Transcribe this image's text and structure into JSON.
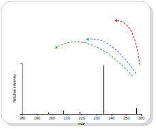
{
  "chart_data": {
    "type": "bar",
    "x": [
      198,
      208,
      219,
      235,
      257
    ],
    "values": [
      3,
      7,
      4,
      100,
      12
    ],
    "color": "#000000",
    "xlim": [
      180,
      260
    ],
    "xticks": [
      180,
      190,
      200,
      210,
      220,
      230,
      240,
      250,
      260
    ],
    "ylim": [
      0,
      105
    ],
    "yticks": [
      0
    ],
    "x_label": "m/z",
    "y_label": "Relative intensity",
    "tick_labels": "x"
  }
}
